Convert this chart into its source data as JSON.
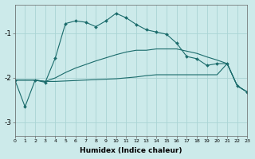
{
  "xlabel": "Humidex (Indice chaleur)",
  "x": [
    0,
    1,
    2,
    3,
    4,
    5,
    6,
    7,
    8,
    9,
    10,
    11,
    12,
    13,
    14,
    15,
    16,
    17,
    18,
    19,
    20,
    21,
    22,
    23
  ],
  "line1": [
    -2.05,
    -2.65,
    -2.05,
    -2.1,
    -1.55,
    -0.78,
    -0.72,
    -0.75,
    -0.85,
    -0.72,
    -0.55,
    -0.65,
    -0.8,
    -0.92,
    -0.97,
    -1.02,
    -1.22,
    -1.52,
    -1.57,
    -1.72,
    -1.68,
    -1.68,
    -2.18,
    -2.32
  ],
  "line2": [
    -2.05,
    -2.05,
    -2.05,
    -2.08,
    -2.08,
    -2.07,
    -2.06,
    -2.05,
    -2.04,
    -2.03,
    -2.02,
    -2.0,
    -1.98,
    -1.95,
    -1.93,
    -1.93,
    -1.93,
    -1.93,
    -1.93,
    -1.93,
    -1.93,
    -1.68,
    -2.18,
    -2.32
  ],
  "line3": [
    -2.05,
    -2.05,
    -2.05,
    -2.08,
    -2.0,
    -1.88,
    -1.78,
    -1.7,
    -1.62,
    -1.55,
    -1.48,
    -1.42,
    -1.38,
    -1.38,
    -1.35,
    -1.35,
    -1.35,
    -1.4,
    -1.45,
    -1.53,
    -1.6,
    -1.68,
    -2.18,
    -2.32
  ],
  "bg_color": "#cceaea",
  "grid_color": "#aad4d4",
  "line_color": "#1a6b6b",
  "ylim": [
    -3.3,
    -0.35
  ],
  "xlim": [
    0,
    23
  ],
  "yticks": [
    -3,
    -2,
    -1
  ],
  "xticks": [
    0,
    1,
    2,
    3,
    4,
    5,
    6,
    7,
    8,
    9,
    10,
    11,
    12,
    13,
    14,
    15,
    16,
    17,
    18,
    19,
    20,
    21,
    22,
    23
  ]
}
